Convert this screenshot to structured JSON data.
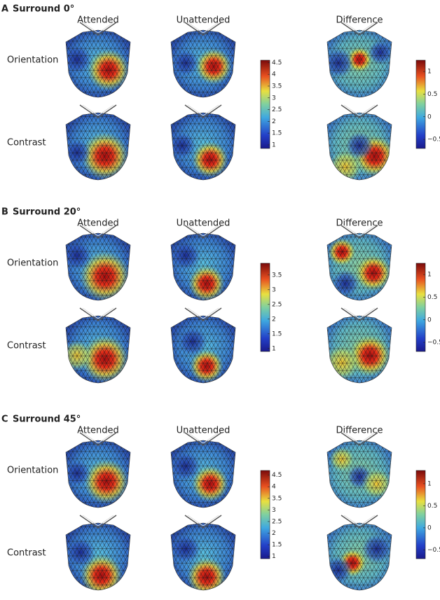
{
  "panels": [
    {
      "letter": "A",
      "title": "Surround 0°",
      "columns": [
        "Attended",
        "Unattended",
        "Difference"
      ],
      "rows": [
        "Orientation",
        "Contrast"
      ],
      "colorbars": [
        {
          "range": [
            0.85,
            4.6
          ],
          "ticks": [
            1,
            1.5,
            2,
            2.5,
            3,
            3.5,
            4,
            4.5
          ]
        },
        {
          "range": [
            -0.7,
            1.25
          ],
          "ticks": [
            {
              "value": -0.5,
              "label": "−0.5"
            },
            0,
            0.5,
            1
          ]
        }
      ]
    },
    {
      "letter": "B",
      "title": "Surround 20°",
      "columns": [
        "Attended",
        "Unattended",
        "Difference"
      ],
      "rows": [
        "Orientation",
        "Contrast"
      ],
      "colorbars": [
        {
          "range": [
            0.9,
            3.9
          ],
          "ticks": [
            1,
            1.5,
            2,
            2.5,
            3,
            3.5
          ]
        },
        {
          "range": [
            -0.7,
            1.25
          ],
          "ticks": [
            {
              "value": -0.5,
              "label": "−0.5"
            },
            0,
            0.5,
            1
          ]
        }
      ]
    },
    {
      "letter": "C",
      "title": "Surround 45°",
      "columns": [
        "Attended",
        "Unattended",
        "Difference"
      ],
      "rows": [
        "Orientation",
        "Contrast"
      ],
      "colorbars": [
        {
          "range": [
            0.9,
            4.7
          ],
          "ticks": [
            1,
            1.5,
            2,
            2.5,
            3,
            3.5,
            4,
            4.5
          ]
        },
        {
          "range": [
            -0.7,
            1.3
          ],
          "ticks": [
            {
              "value": -0.5,
              "label": "−0.5"
            },
            0,
            0.5,
            1
          ]
        }
      ]
    }
  ]
}
